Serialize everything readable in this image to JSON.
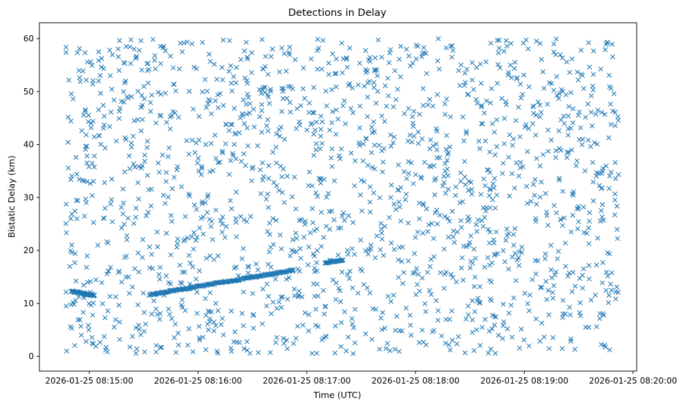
{
  "chart_data": {
    "type": "scatter",
    "title": "Detections in Delay",
    "xlabel": "Time (UTC)",
    "ylabel": "Bistatic Delay (km)",
    "marker": "x",
    "color": "#1f77b4",
    "xlim_seconds_after_0815": [
      -27.5,
      302
    ],
    "ylim": [
      -2.8,
      63
    ],
    "x_ticks": [
      {
        "label": "2026-01-25 08:15:00",
        "seconds": 0
      },
      {
        "label": "2026-01-25 08:16:00",
        "seconds": 60
      },
      {
        "label": "2026-01-25 08:17:00",
        "seconds": 120
      },
      {
        "label": "2026-01-25 08:18:00",
        "seconds": 180
      },
      {
        "label": "2026-01-25 08:19:00",
        "seconds": 240
      },
      {
        "label": "2026-01-25 08:20:00",
        "seconds": 300
      }
    ],
    "y_ticks": [
      0,
      10,
      20,
      30,
      40,
      50,
      60
    ],
    "time_range_seconds": [
      -13,
      292
    ],
    "delay_range": [
      0.5,
      60
    ],
    "noise_point_count": 1700,
    "tracks": [
      {
        "name": "track-1",
        "t_start": -10,
        "t_end": 3,
        "step": 0.3,
        "delay_start": 12.3,
        "delay_end": 11.5
      },
      {
        "name": "track-2",
        "t_start": 33,
        "t_end": 113,
        "step": 0.45,
        "delay_start": 11.6,
        "delay_end": 16.3
      },
      {
        "name": "track-3",
        "t_start": 130,
        "t_end": 140,
        "step": 0.4,
        "delay_start": 17.7,
        "delay_end": 18.2
      }
    ]
  }
}
